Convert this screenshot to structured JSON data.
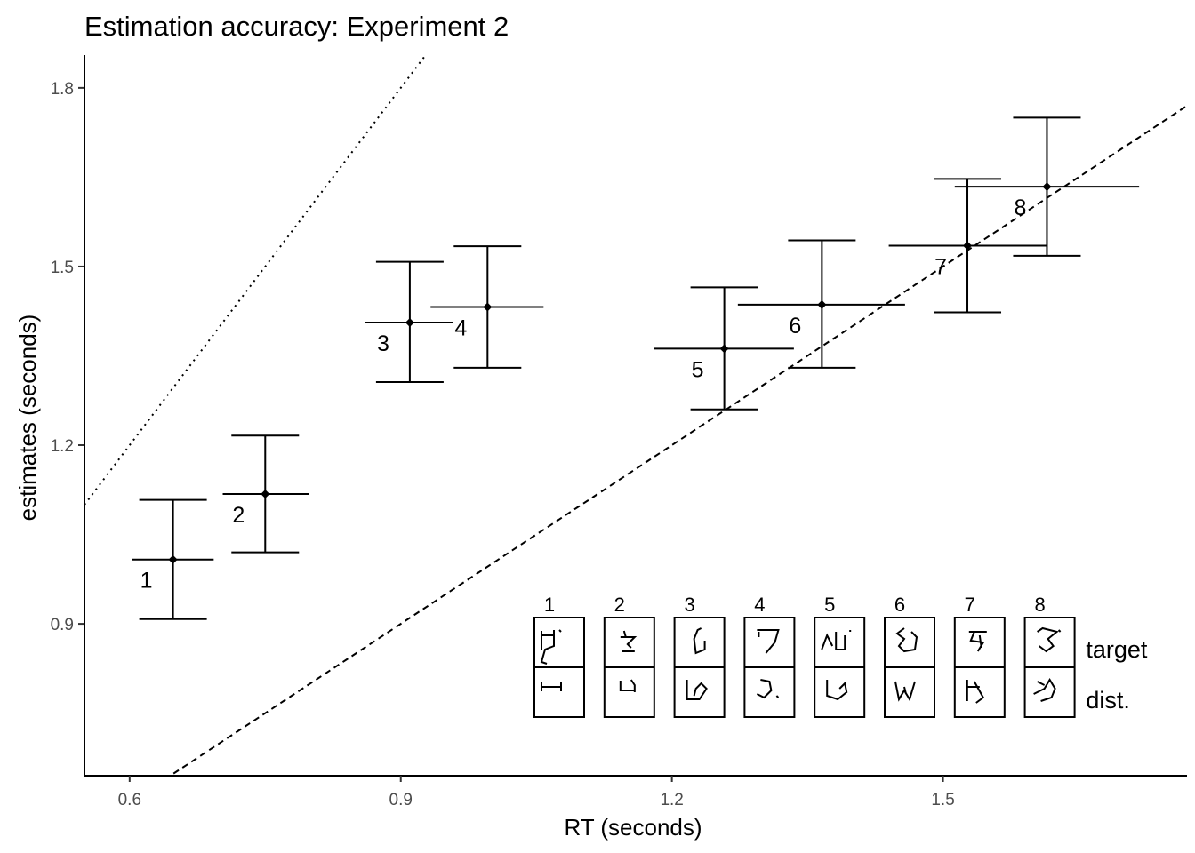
{
  "chart_data": {
    "type": "scatter",
    "title": "Estimation accuracy: Experiment 2",
    "xlabel": "RT (seconds)",
    "ylabel": "estimates (seconds)",
    "xlim": [
      0.55,
      1.77
    ],
    "ylim": [
      0.645,
      1.855
    ],
    "x_ticks": [
      0.6,
      0.9,
      1.2,
      1.5
    ],
    "x_tick_labels": [
      "0.6",
      "0.9",
      "1.2",
      "1.5"
    ],
    "y_ticks": [
      0.9,
      1.2,
      1.5,
      1.8
    ],
    "y_tick_labels": [
      "0.9",
      "1.2",
      "1.5",
      "1.8"
    ],
    "grid": false,
    "points": [
      {
        "label": "1",
        "x": 0.648,
        "y": 1.008,
        "x_low": 0.603,
        "x_high": 0.693,
        "y_low": 0.908,
        "y_high": 1.108
      },
      {
        "label": "2",
        "x": 0.75,
        "y": 1.118,
        "x_low": 0.703,
        "x_high": 0.798,
        "y_low": 1.02,
        "y_high": 1.216
      },
      {
        "label": "3",
        "x": 0.91,
        "y": 1.406,
        "x_low": 0.86,
        "x_high": 0.958,
        "y_low": 1.306,
        "y_high": 1.508
      },
      {
        "label": "4",
        "x": 0.996,
        "y": 1.432,
        "x_low": 0.933,
        "x_high": 1.058,
        "y_low": 1.33,
        "y_high": 1.534
      },
      {
        "label": "5",
        "x": 1.258,
        "y": 1.362,
        "x_low": 1.18,
        "x_high": 1.335,
        "y_low": 1.26,
        "y_high": 1.465
      },
      {
        "label": "6",
        "x": 1.366,
        "y": 1.436,
        "x_low": 1.273,
        "x_high": 1.458,
        "y_low": 1.33,
        "y_high": 1.544
      },
      {
        "label": "7",
        "x": 1.527,
        "y": 1.535,
        "x_low": 1.44,
        "x_high": 1.615,
        "y_low": 1.423,
        "y_high": 1.647
      },
      {
        "label": "8",
        "x": 1.615,
        "y": 1.634,
        "x_low": 1.513,
        "x_high": 1.717,
        "y_low": 1.518,
        "y_high": 1.75
      }
    ],
    "reference_lines": [
      {
        "style": "dotted",
        "slope": 2,
        "intercept": 0
      },
      {
        "style": "dashed",
        "slope": 1,
        "intercept": 0
      }
    ],
    "inset": {
      "numbers": [
        "1",
        "2",
        "3",
        "4",
        "5",
        "6",
        "7",
        "8"
      ],
      "row_labels": [
        "target",
        "dist."
      ]
    }
  }
}
